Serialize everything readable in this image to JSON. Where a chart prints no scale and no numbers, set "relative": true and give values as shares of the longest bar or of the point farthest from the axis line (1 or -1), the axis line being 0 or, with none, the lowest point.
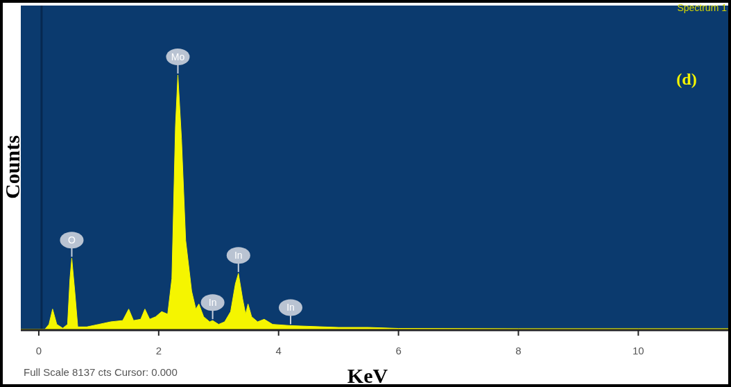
{
  "chart_data": {
    "type": "area",
    "relative": true,
    "xlabel": "KeV",
    "ylabel": "Counts",
    "xlim": [
      -0.3,
      11.5
    ],
    "xticks": [
      0,
      2,
      4,
      6,
      8,
      10
    ],
    "series": [
      {
        "color": "#f5f500",
        "x": [
          -0.3,
          0.1,
          0.17,
          0.23,
          0.3,
          0.4,
          0.48,
          0.52,
          0.55,
          0.6,
          0.65,
          0.8,
          1.0,
          1.2,
          1.4,
          1.5,
          1.58,
          1.7,
          1.77,
          1.85,
          1.95,
          2.05,
          2.15,
          2.22,
          2.28,
          2.32,
          2.38,
          2.45,
          2.55,
          2.62,
          2.67,
          2.75,
          2.85,
          2.9,
          3.0,
          3.1,
          3.2,
          3.28,
          3.33,
          3.4,
          3.45,
          3.49,
          3.55,
          3.65,
          3.76,
          3.9,
          4.2,
          5.0,
          5.5,
          6.0,
          8.0,
          10.0,
          11.5
        ],
        "values": [
          0,
          0,
          0.02,
          0.08,
          0.02,
          0.005,
          0.02,
          0.2,
          0.28,
          0.15,
          0.01,
          0.01,
          0.02,
          0.03,
          0.035,
          0.08,
          0.035,
          0.04,
          0.08,
          0.04,
          0.05,
          0.07,
          0.06,
          0.2,
          0.8,
          1,
          0.75,
          0.35,
          0.15,
          0.08,
          0.1,
          0.05,
          0.03,
          0.035,
          0.02,
          0.03,
          0.07,
          0.18,
          0.22,
          0.12,
          0.06,
          0.1,
          0.05,
          0.03,
          0.04,
          0.02,
          0.015,
          0.008,
          0.008,
          0.004,
          0.003,
          0.003,
          0.003
        ]
      }
    ],
    "annotations": [
      {
        "text": "Mo",
        "x": 2.32,
        "y": 1
      },
      {
        "text": "O",
        "x": 0.55,
        "y": 0.28
      },
      {
        "text": "In",
        "x": 2.9,
        "y": 0.035
      },
      {
        "text": "In",
        "x": 3.33,
        "y": 0.22
      },
      {
        "text": "In",
        "x": 4.2,
        "y": 0.015
      },
      "Spectrum 1",
      "(d)",
      "Full Scale 8137 cts Cursor: 0.000"
    ]
  }
}
